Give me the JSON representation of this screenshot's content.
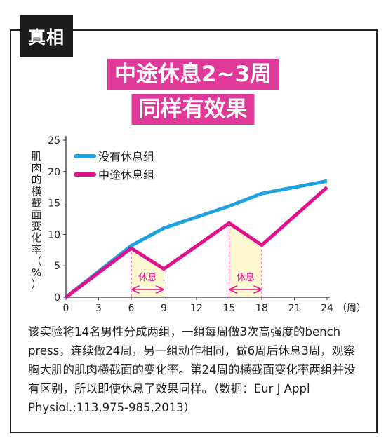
{
  "badge": "真相",
  "title_lines": [
    "中途休息2~3周",
    "同样有效果"
  ],
  "chart_data": {
    "type": "line",
    "ylabel_chars": [
      "肌",
      "肉",
      "的",
      "横",
      "截",
      "面",
      "变",
      "化",
      "率",
      "（",
      "%",
      "）"
    ],
    "x_unit": "（周）",
    "x_ticks": [
      0,
      3,
      6,
      9,
      12,
      15,
      18,
      21,
      24
    ],
    "y_ticks": [
      0,
      5,
      10,
      15,
      20,
      25
    ],
    "xlim": [
      0,
      24
    ],
    "ylim": [
      0,
      25
    ],
    "legend_position": "top-left",
    "series": [
      {
        "name": "没有休息组",
        "color": "#1fa3e0",
        "x": [
          0,
          6,
          9,
          15,
          18,
          24
        ],
        "y": [
          0,
          8.2,
          11,
          14.5,
          16.5,
          18.5
        ]
      },
      {
        "name": "中途休息组",
        "color": "#e0118a",
        "x": [
          0,
          6,
          9,
          15,
          18,
          24
        ],
        "y": [
          0,
          7.8,
          4.5,
          11.8,
          8.3,
          17.5
        ]
      }
    ],
    "rest_periods": [
      {
        "label": "休息",
        "x_start": 6,
        "x_end": 9
      },
      {
        "label": "休息",
        "x_start": 15,
        "x_end": 18
      }
    ],
    "grid": false
  },
  "description": "该实验将14名男性分成两组，一组每周做3次高强度的bench press，连续做24周，另一组动作相同，做6周后休息3周，观察胸大肌的肌肉横截面的变化率。第24周的横截面变化率两组并没有区别，所以即使休息了效果同样。（数据：Eur J Appl Physiol.;113,975-985,2013）"
}
